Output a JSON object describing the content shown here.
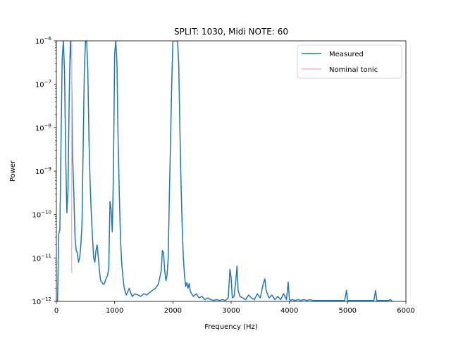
{
  "chart_data": {
    "type": "line",
    "title": "SPLIT: 1030, Midi NOTE: 60",
    "xlabel": "Frequency (Hz)",
    "ylabel": "Power",
    "xlim": [
      0,
      6000
    ],
    "ylim": [
      1e-12,
      1e-06
    ],
    "yscale": "log",
    "grid": false,
    "legend_position": "top-right",
    "x_ticks": [
      0,
      1000,
      2000,
      3000,
      4000,
      5000,
      6000
    ],
    "y_ticks": [
      {
        "value": 1e-12,
        "base": "10",
        "exp": "−12"
      },
      {
        "value": 1e-11,
        "base": "10",
        "exp": "−11"
      },
      {
        "value": 1e-10,
        "base": "10",
        "exp": "−10"
      },
      {
        "value": 1e-09,
        "base": "10",
        "exp": "−9"
      },
      {
        "value": 1e-08,
        "base": "10",
        "exp": "−8"
      },
      {
        "value": 1e-07,
        "base": "10",
        "exp": "−7"
      },
      {
        "value": 1e-06,
        "base": "10",
        "exp": "−6"
      }
    ],
    "series": [
      {
        "name": "Measured",
        "color": "#1f77b4",
        "x": [
          20,
          40,
          60,
          80,
          100,
          120,
          140,
          160,
          180,
          200,
          220,
          240,
          260,
          280,
          300,
          320,
          340,
          360,
          380,
          400,
          420,
          440,
          460,
          480,
          500,
          520,
          540,
          560,
          580,
          600,
          620,
          640,
          660,
          680,
          700,
          720,
          740,
          760,
          780,
          800,
          820,
          840,
          860,
          880,
          900,
          920,
          940,
          960,
          980,
          1000,
          1020,
          1040,
          1060,
          1080,
          1100,
          1120,
          1140,
          1160,
          1180,
          1200,
          1250,
          1300,
          1350,
          1400,
          1450,
          1500,
          1550,
          1600,
          1650,
          1700,
          1750,
          1800,
          1820,
          1840,
          1860,
          1880,
          1900,
          1920,
          1940,
          1960,
          1980,
          2000,
          2020,
          2060,
          2080,
          2100,
          2120,
          2140,
          2160,
          2180,
          2200,
          2220,
          2240,
          2260,
          2280,
          2300,
          2350,
          2400,
          2450,
          2500,
          2550,
          2600,
          2650,
          2700,
          2750,
          2800,
          2850,
          2900,
          2950,
          2980,
          3000,
          3020,
          3050,
          3080,
          3100,
          3120,
          3150,
          3200,
          3250,
          3300,
          3350,
          3400,
          3450,
          3500,
          3550,
          3580,
          3600,
          3650,
          3700,
          3750,
          3800,
          3850,
          3900,
          3950,
          3980,
          4000,
          4020,
          4050,
          4100,
          4150,
          4200,
          4250,
          4300,
          4350,
          4400,
          4450,
          4500,
          4550,
          4600,
          4650,
          4700,
          4750,
          4800,
          4850,
          4900,
          4950,
          4980,
          5000,
          5020,
          5050,
          5100,
          5150,
          5200,
          5250,
          5300,
          5350,
          5400,
          5450,
          5480,
          5500,
          5520,
          5550,
          5600,
          5650,
          5700,
          5730,
          5750,
          5760
        ],
        "y": [
          1e-12,
          3.5e-11,
          4.5e-11,
          5e-09,
          4e-07,
          1e-06,
          2e-07,
          2e-09,
          1.1e-10,
          4e-10,
          5e-08,
          1e-06,
          3e-07,
          2e-09,
          3e-10,
          3e-11,
          1.5e-11,
          1.3e-11,
          8e-12,
          1e-11,
          2e-11,
          6e-11,
          4e-09,
          2e-07,
          1e-06,
          1e-06,
          2e-07,
          5e-09,
          5e-10,
          1e-10,
          3e-11,
          1e-11,
          8e-12,
          1.5e-11,
          2e-11,
          1e-11,
          5e-12,
          3e-12,
          2.8e-12,
          2.5e-12,
          2.5e-12,
          3e-12,
          3.5e-12,
          4e-12,
          6e-12,
          2e-10,
          1.3e-10,
          4e-11,
          1e-09,
          5e-07,
          1e-06,
          3e-07,
          5e-09,
          3e-10,
          3e-11,
          8e-12,
          4e-12,
          2.2e-12,
          1.7e-12,
          1.4e-12,
          2e-12,
          1.3e-12,
          1.5e-12,
          1.4e-12,
          1.3e-12,
          1.5e-12,
          1.4e-12,
          1.6e-12,
          1.8e-12,
          2e-12,
          2.5e-12,
          5e-12,
          1.5e-11,
          1.3e-11,
          5e-12,
          3e-12,
          4e-12,
          1e-11,
          3e-10,
          5e-09,
          1e-07,
          1e-06,
          1e-06,
          1e-06,
          1e-06,
          3e-07,
          1e-08,
          5e-10,
          5e-11,
          1e-11,
          4e-12,
          2.2e-12,
          2.7e-12,
          2e-12,
          2.6e-12,
          1.7e-12,
          1.3e-12,
          1.5e-12,
          1.2e-12,
          1.3e-12,
          1.1e-12,
          1.2e-12,
          1.1e-12,
          1.05e-12,
          1.1e-12,
          1.05e-12,
          1.1e-12,
          1.05e-12,
          1.2e-12,
          5.5e-12,
          3.5e-12,
          1.2e-12,
          1.3e-12,
          3e-12,
          6.5e-12,
          1.8e-12,
          1.3e-12,
          1.2e-12,
          1.1e-12,
          1.4e-12,
          1.2e-12,
          1.1e-12,
          1.5e-12,
          1.2e-12,
          2.5e-12,
          3.3e-12,
          1.8e-12,
          1.2e-12,
          1.4e-12,
          1.1e-12,
          1.3e-12,
          1.1e-12,
          1.5e-12,
          1.1e-12,
          2.8e-12,
          1.1e-12,
          1.05e-12,
          1.1e-12,
          1.05e-12,
          1.1e-12,
          1.05e-12,
          1.1e-12,
          1.05e-12,
          1.1e-12,
          1.05e-12,
          1.05e-12,
          1.05e-12,
          1.05e-12,
          1.05e-12,
          1.05e-12,
          1.05e-12,
          1.05e-12,
          1.05e-12,
          1.05e-12,
          1.05e-12,
          1.05e-12,
          1.8e-12,
          1.05e-12,
          1.05e-12,
          1.05e-12,
          1.05e-12,
          1.05e-12,
          1.05e-12,
          1.05e-12,
          1.05e-12,
          1.05e-12,
          1.05e-12,
          1.05e-12,
          1.8e-12,
          1.05e-12,
          1.05e-12,
          1.05e-12,
          1.05e-12,
          1.05e-12,
          1.05e-12,
          1.1e-12,
          1.05e-12,
          1e-12
        ]
      },
      {
        "name": "Nominal tonic",
        "color": "#ffb6c1",
        "x": [
          262,
          262
        ],
        "y": [
          4.5e-12,
          1e-06
        ]
      }
    ]
  }
}
